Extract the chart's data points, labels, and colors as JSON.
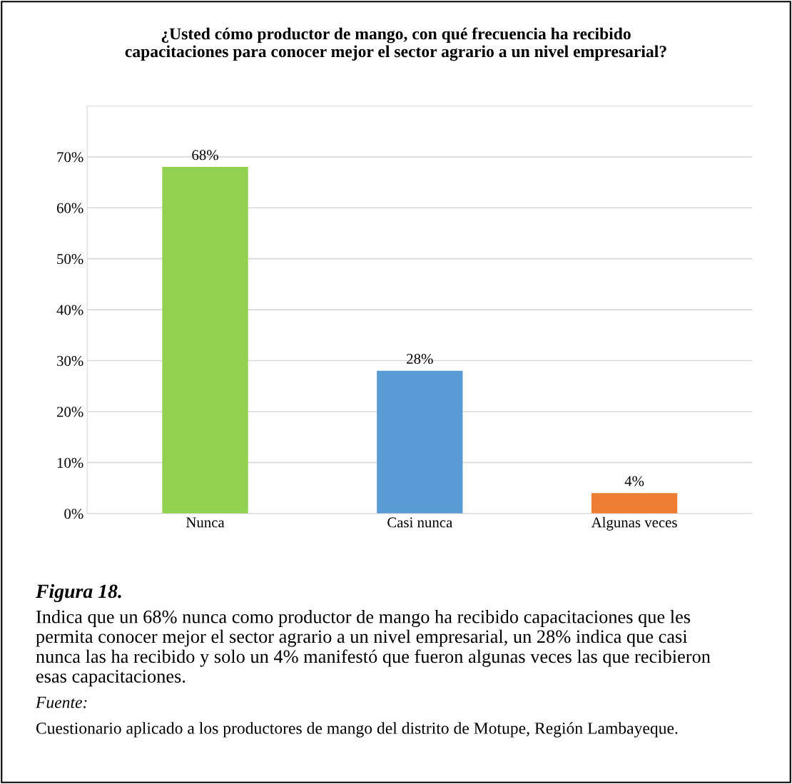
{
  "chart_data": {
    "type": "bar",
    "title": "¿Usted cómo productor de mango, con qué frecuencia ha recibido capacitaciones para conocer mejor el sector agrario a un nivel empresarial?",
    "categories": [
      "Nunca",
      "Casi nunca",
      "Algunas veces"
    ],
    "values": [
      68,
      28,
      4
    ],
    "colors": [
      "#92d050",
      "#5b9bd5",
      "#ed7d31"
    ],
    "value_labels": [
      "68%",
      "28%",
      "4%"
    ],
    "ylim": [
      0,
      80
    ],
    "yticks": [
      {
        "value": 0,
        "label": "0%"
      },
      {
        "value": 10,
        "label": "10%"
      },
      {
        "value": 20,
        "label": "20%"
      },
      {
        "value": 30,
        "label": "30%"
      },
      {
        "value": 40,
        "label": "40%"
      },
      {
        "value": 50,
        "label": "50%"
      },
      {
        "value": 60,
        "label": "60%"
      },
      {
        "value": 70,
        "label": "70%"
      },
      {
        "value": 80,
        "label": null
      }
    ],
    "grid": "y",
    "annotations": [
      "Figura 18.",
      "Indica que un 68% nunca como productor de mango ha recibido capacitaciones que les permita conocer mejor el sector agrario a un nivel empresarial, un 28% indica que casi nunca las ha recibido y solo un 4% manifestó que fueron algunas veces las que recibieron esas capacitaciones.",
      "Fuente:",
      "Cuestionario aplicado a los productores de mango del distrito de Motupe, Región Lambayeque."
    ]
  }
}
